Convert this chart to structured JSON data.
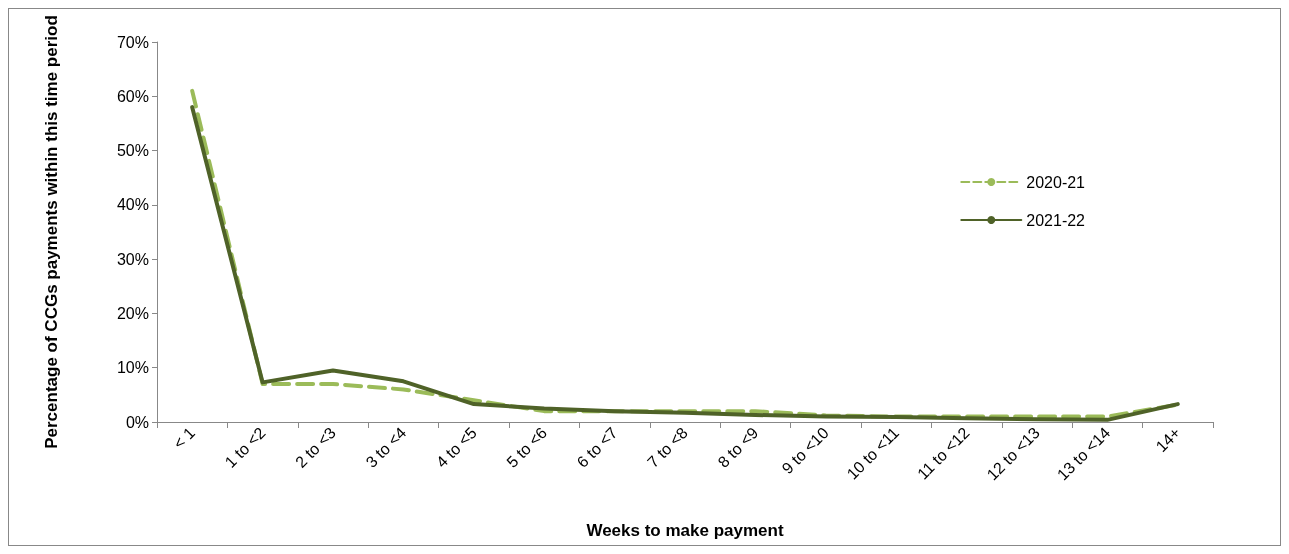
{
  "chart_data": {
    "type": "line",
    "xlabel": "Weeks to make payment",
    "ylabel": "Percentage of CCGs payments within this time period",
    "categories": [
      "< 1",
      "1 to <2",
      "2 to <3",
      "3 to <4",
      "4 to <5",
      "5 to <6",
      "6 to <7",
      "7 to <8",
      "8 to <9",
      "9 to <10",
      "10 to <11",
      "11 to <12",
      "12 to <13",
      "13 to <14",
      "14+"
    ],
    "series": [
      {
        "name": "2020-21",
        "color": "#9bbb59",
        "line_style": "dashed",
        "values": [
          61,
          7,
          7,
          6,
          4,
          2,
          2,
          2,
          2,
          1.2,
          1,
          1,
          1,
          1,
          3.2
        ]
      },
      {
        "name": "2021-22",
        "color": "#4f6228",
        "line_style": "solid",
        "values": [
          58,
          7.3,
          9.5,
          7.5,
          3.3,
          2.5,
          2,
          1.7,
          1.3,
          1,
          0.9,
          0.7,
          0.5,
          0.4,
          3.3
        ]
      }
    ],
    "ylim": [
      0,
      70
    ],
    "yticks": [
      {
        "value": 0,
        "label": "0%"
      },
      {
        "value": 10,
        "label": "10%"
      },
      {
        "value": 20,
        "label": "20%"
      },
      {
        "value": 30,
        "label": "30%"
      },
      {
        "value": 40,
        "label": "40%"
      },
      {
        "value": 50,
        "label": "50%"
      },
      {
        "value": 60,
        "label": "60%"
      },
      {
        "value": 70,
        "label": "70%"
      }
    ],
    "grid": false,
    "legend": "right",
    "marker": "none"
  }
}
